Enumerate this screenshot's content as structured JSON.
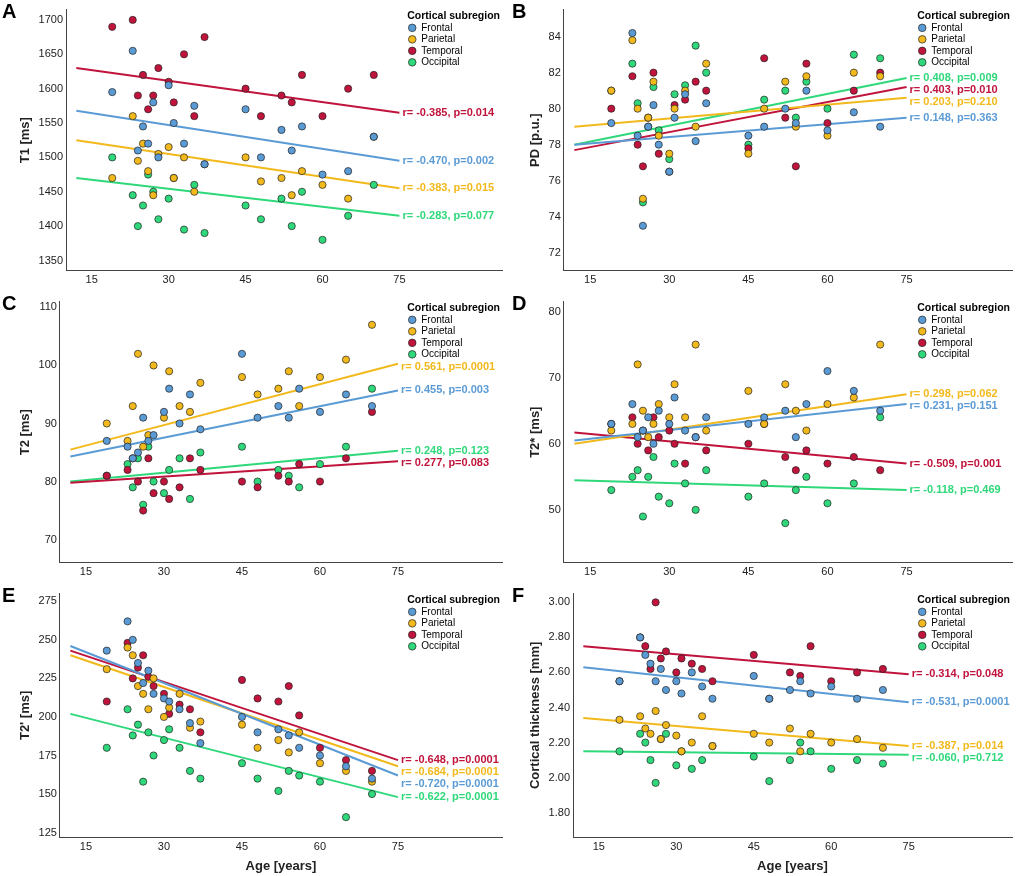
{
  "chart_data": [
    {
      "type": "scatter",
      "title": "A",
      "y_label": "T1 [ms]",
      "legend_title": "Cortical subregion",
      "legend": "upper right",
      "grid": false,
      "marker": "circle",
      "x": [
        19,
        23,
        24,
        25,
        26,
        27,
        28,
        30,
        31,
        33,
        35,
        37,
        45,
        48,
        52,
        54,
        56,
        60,
        65,
        70
      ],
      "xlim": [
        10,
        95
      ],
      "xticks": [
        15,
        30,
        45,
        60,
        75
      ],
      "ylim": [
        1335,
        1715
      ],
      "yticks": [
        1350,
        1400,
        1450,
        1500,
        1550,
        1600,
        1650,
        1700
      ],
      "trend_x": [
        12,
        75
      ],
      "series": [
        {
          "name": "Frontal",
          "color": "#5b9bd5",
          "values": [
            1595,
            1655,
            1510,
            1545,
            1520,
            1580,
            1500,
            1605,
            1550,
            1520,
            1575,
            1490,
            1570,
            1500,
            1540,
            1510,
            1545,
            1475,
            1480,
            1530
          ],
          "trend": [
            1568,
            1495
          ],
          "annotation": "r= -0.470, p=0.002"
        },
        {
          "name": "Parietal",
          "color": "#f2b91c",
          "values": [
            1470,
            1560,
            1495,
            1520,
            1480,
            1445,
            1505,
            1515,
            1470,
            1500,
            1450,
            1490,
            1500,
            1465,
            1470,
            1445,
            1480,
            1460,
            1440,
            1530
          ],
          "trend": [
            1525,
            1455
          ],
          "annotation": "r= -0.383, p=0.015"
        },
        {
          "name": "Temporal",
          "color": "#c0143c",
          "values": [
            1690,
            1700,
            1590,
            1620,
            1570,
            1590,
            1630,
            1610,
            1580,
            1650,
            1560,
            1675,
            1600,
            1560,
            1590,
            1580,
            1620,
            1560,
            1600,
            1620
          ],
          "trend": [
            1630,
            1565
          ],
          "annotation": "r= -0.385, p=0.014"
        },
        {
          "name": "Occipital",
          "color": "#2fd87a",
          "values": [
            1500,
            1445,
            1400,
            1430,
            1475,
            1450,
            1410,
            1440,
            1470,
            1395,
            1460,
            1390,
            1430,
            1410,
            1440,
            1400,
            1450,
            1380,
            1415,
            1460
          ],
          "trend": [
            1470,
            1415
          ],
          "annotation": "r= -0.283, p=0.077"
        }
      ]
    },
    {
      "type": "scatter",
      "title": "B",
      "y_label": "PD [p.u.]",
      "legend_title": "Cortical subregion",
      "legend": "upper right",
      "grid": false,
      "marker": "circle",
      "x": [
        19,
        23,
        24,
        25,
        26,
        27,
        28,
        30,
        31,
        33,
        35,
        37,
        45,
        48,
        52,
        54,
        56,
        60,
        65,
        70
      ],
      "xlim": [
        10,
        95
      ],
      "xticks": [
        15,
        30,
        45,
        60,
        75
      ],
      "ylim": [
        71,
        85.5
      ],
      "yticks": [
        72,
        74,
        76,
        78,
        80,
        82,
        84
      ],
      "trend_x": [
        12,
        75
      ],
      "series": [
        {
          "name": "Frontal",
          "color": "#5b9bd5",
          "values": [
            79.2,
            84.2,
            78.5,
            73.5,
            79.0,
            80.2,
            78.0,
            76.5,
            79.5,
            80.8,
            78.2,
            80.3,
            78.5,
            79.0,
            80.0,
            79.2,
            81.0,
            78.8,
            79.8,
            79.0
          ],
          "trend": [
            78.0,
            79.5
          ],
          "annotation": "r= 0.148, p=0.363"
        },
        {
          "name": "Parietal",
          "color": "#f2b91c",
          "values": [
            81.0,
            83.8,
            80.0,
            75.0,
            79.5,
            81.5,
            78.5,
            77.5,
            80.0,
            81.0,
            79.0,
            82.5,
            77.5,
            80.0,
            81.5,
            79.0,
            81.8,
            78.5,
            82.0,
            81.8
          ],
          "trend": [
            79.0,
            80.6
          ],
          "annotation": "r= 0.203, p=0.210"
        },
        {
          "name": "Temporal",
          "color": "#c0143c",
          "values": [
            80.0,
            81.8,
            78.0,
            76.8,
            79.5,
            82.0,
            77.5,
            76.5,
            80.2,
            80.5,
            81.5,
            81.0,
            77.8,
            82.8,
            79.5,
            76.8,
            82.5,
            79.2,
            81.0,
            82.0
          ],
          "trend": [
            77.7,
            81.2
          ],
          "annotation": "r= 0.403, p=0.010"
        },
        {
          "name": "Occipital",
          "color": "#2fd87a",
          "values": [
            81.0,
            82.5,
            80.3,
            74.8,
            79.0,
            81.2,
            78.8,
            77.2,
            80.8,
            81.3,
            83.5,
            82.0,
            78.0,
            80.5,
            81.0,
            79.5,
            81.5,
            80.0,
            83.0,
            82.8
          ],
          "trend": [
            78.0,
            81.7
          ],
          "annotation": "r= 0.408, p=0.009"
        }
      ]
    },
    {
      "type": "scatter",
      "title": "C",
      "y_label": "T2 [ms]",
      "legend_title": "Cortical subregion",
      "legend": "upper right",
      "grid": false,
      "marker": "circle",
      "x": [
        19,
        23,
        24,
        25,
        26,
        27,
        28,
        30,
        31,
        33,
        35,
        37,
        45,
        48,
        52,
        54,
        56,
        60,
        65,
        70
      ],
      "xlim": [
        10,
        95
      ],
      "xticks": [
        15,
        30,
        45,
        60,
        75
      ],
      "ylim": [
        66,
        111
      ],
      "yticks": [
        70,
        80,
        90,
        100,
        110
      ],
      "trend_x": [
        12,
        75
      ],
      "series": [
        {
          "name": "Frontal",
          "color": "#5b9bd5",
          "values": [
            87,
            86,
            84,
            85,
            91,
            87,
            88,
            92,
            96,
            90,
            95,
            89,
            102,
            91,
            93,
            91,
            96,
            92,
            95,
            93
          ],
          "trend": [
            84.3,
            95.7
          ],
          "annotation": "r= 0.455, p=0.003"
        },
        {
          "name": "Parietal",
          "color": "#f2b91c",
          "values": [
            90,
            87,
            93,
            102,
            86,
            88,
            100,
            91,
            99,
            93,
            92,
            97,
            98,
            95,
            96,
            99,
            93,
            98,
            101,
            107
          ],
          "trend": [
            85.5,
            100.3
          ],
          "annotation": "r= 0.561, p=0.0001"
        },
        {
          "name": "Temporal",
          "color": "#c0143c",
          "values": [
            81,
            82,
            84,
            80,
            75,
            84,
            78,
            80,
            77,
            79,
            84,
            82,
            80,
            79,
            81,
            80,
            83,
            80,
            84,
            92
          ],
          "trend": [
            79.8,
            83.5
          ],
          "annotation": "r= 0.277, p=0.083"
        },
        {
          "name": "Occipital",
          "color": "#2fd87a",
          "values": [
            81,
            83,
            79,
            84,
            76,
            86,
            80,
            78,
            82,
            84,
            77,
            85,
            86,
            80,
            82,
            81,
            79,
            83,
            86,
            96
          ],
          "trend": [
            80.0,
            85.3
          ],
          "annotation": "r= 0.248, p=0.123"
        }
      ]
    },
    {
      "type": "scatter",
      "title": "D",
      "y_label": "T2* [ms]",
      "legend_title": "Cortical subregion",
      "legend": "upper right",
      "grid": false,
      "marker": "circle",
      "x": [
        19,
        23,
        24,
        25,
        26,
        27,
        28,
        30,
        31,
        33,
        35,
        37,
        45,
        48,
        52,
        54,
        56,
        60,
        65,
        70
      ],
      "xlim": [
        10,
        95
      ],
      "xticks": [
        15,
        30,
        45,
        60,
        75
      ],
      "ylim": [
        42,
        81.5
      ],
      "yticks": [
        50,
        60,
        70,
        80
      ],
      "trend_x": [
        12,
        75
      ],
      "series": [
        {
          "name": "Frontal",
          "color": "#5b9bd5",
          "values": [
            63,
            66,
            61,
            62,
            64,
            60,
            65,
            63,
            67,
            62,
            61,
            64,
            63,
            64,
            65,
            61,
            66,
            71,
            68,
            65
          ],
          "trend": [
            60.5,
            66.0
          ],
          "annotation": "r= 0.231, p=0.151"
        },
        {
          "name": "Parietal",
          "color": "#f2b91c",
          "values": [
            62,
            63,
            72,
            65,
            61,
            63,
            66,
            64,
            69,
            64,
            75,
            62,
            68,
            63,
            69,
            65,
            62,
            66,
            67,
            75
          ],
          "trend": [
            60.0,
            67.5
          ],
          "annotation": "r= 0.298, p=0.062"
        },
        {
          "name": "Temporal",
          "color": "#c0143c",
          "values": [
            63,
            64,
            60,
            62,
            59,
            64,
            61,
            62,
            60,
            57,
            61,
            59,
            60,
            63,
            58,
            56,
            59,
            57,
            58,
            56
          ],
          "trend": [
            61.7,
            57.0
          ],
          "annotation": "r= -0.509, p=0.001"
        },
        {
          "name": "Occipital",
          "color": "#2fd87a",
          "values": [
            53,
            55,
            56,
            49,
            55,
            58,
            52,
            51,
            57,
            54,
            50,
            56,
            52,
            54,
            48,
            53,
            55,
            51,
            54,
            64
          ],
          "trend": [
            54.5,
            53.0
          ],
          "annotation": "r= -0.118, p=0.469"
        }
      ]
    },
    {
      "type": "scatter",
      "title": "E",
      "y_label": "T2' [ms]",
      "x_label": "Age [years]",
      "legend_title": "Cortical subregion",
      "legend": "upper right",
      "grid": false,
      "marker": "circle",
      "x": [
        19,
        23,
        24,
        25,
        26,
        27,
        28,
        30,
        31,
        33,
        35,
        37,
        45,
        48,
        52,
        54,
        56,
        60,
        65,
        70
      ],
      "xlim": [
        10,
        95
      ],
      "xticks": [
        15,
        30,
        45,
        60,
        75
      ],
      "ylim": [
        122,
        280
      ],
      "yticks": [
        125,
        150,
        175,
        200,
        225,
        250,
        275
      ],
      "trend_x": [
        12,
        75
      ],
      "series": [
        {
          "name": "Frontal",
          "color": "#5b9bd5",
          "values": [
            243,
            262,
            250,
            235,
            222,
            230,
            215,
            212,
            210,
            205,
            196,
            183,
            200,
            190,
            192,
            188,
            180,
            175,
            168,
            160
          ],
          "trend": [
            246,
            162
          ],
          "annotation": "r= -0.720, p=0.0001"
        },
        {
          "name": "Parietal",
          "color": "#f2b91c",
          "values": [
            231,
            245,
            240,
            220,
            215,
            205,
            225,
            200,
            206,
            215,
            193,
            197,
            195,
            180,
            185,
            177,
            190,
            170,
            165,
            158
          ],
          "trend": [
            240,
            168
          ],
          "annotation": "r= -0.684, p=0.0001"
        },
        {
          "name": "Temporal",
          "color": "#c0143c",
          "values": [
            210,
            248,
            225,
            232,
            240,
            226,
            220,
            215,
            202,
            208,
            205,
            190,
            224,
            212,
            210,
            220,
            201,
            180,
            172,
            165
          ],
          "trend": [
            243,
            172
          ],
          "annotation": "r= -0.648, p=0.0001"
        },
        {
          "name": "Occipital",
          "color": "#2fd87a",
          "values": [
            180,
            205,
            188,
            195,
            158,
            190,
            175,
            185,
            192,
            180,
            165,
            160,
            170,
            160,
            152,
            165,
            162,
            158,
            135,
            150
          ],
          "trend": [
            202,
            148
          ],
          "annotation": "r= -0.622, p=0.0001"
        }
      ]
    },
    {
      "type": "scatter",
      "title": "F",
      "y_label": "Cortical thickness [mm]",
      "x_label": "Age [years]",
      "legend_title": "Cortical subregion",
      "legend": "upper right",
      "grid": false,
      "marker": "circle",
      "x": [
        19,
        23,
        24,
        25,
        26,
        27,
        28,
        30,
        31,
        33,
        35,
        37,
        45,
        48,
        52,
        54,
        56,
        60,
        65,
        70
      ],
      "xlim": [
        10,
        95
      ],
      "xticks": [
        15,
        30,
        45,
        60,
        75
      ],
      "ylim": [
        1.66,
        3.05
      ],
      "yticks": [
        {
          "value": 1.8,
          "label": "1.80"
        },
        {
          "value": 2.0,
          "label": "2.00"
        },
        {
          "value": 2.2,
          "label": "2.20"
        },
        {
          "value": 2.4,
          "label": "2.40"
        },
        {
          "value": 2.6,
          "label": "2.60"
        },
        {
          "value": 2.8,
          "label": "2.80"
        },
        {
          "value": 3.0,
          "label": "3.00"
        }
      ],
      "trend_x": [
        12,
        75
      ],
      "series": [
        {
          "name": "Frontal",
          "color": "#5b9bd5",
          "values": [
            2.55,
            2.8,
            2.7,
            2.65,
            2.55,
            2.62,
            2.5,
            2.55,
            2.48,
            2.6,
            2.52,
            2.45,
            2.58,
            2.45,
            2.5,
            2.55,
            2.48,
            2.52,
            2.45,
            2.5
          ],
          "trend": [
            2.63,
            2.43
          ],
          "annotation": "r= -0.531, p=0.0001"
        },
        {
          "name": "Parietal",
          "color": "#f2b91c",
          "values": [
            2.33,
            2.35,
            2.28,
            2.25,
            2.38,
            2.22,
            2.3,
            2.24,
            2.15,
            2.2,
            2.35,
            2.18,
            2.25,
            2.2,
            2.28,
            2.15,
            2.25,
            2.2,
            2.22,
            2.17
          ],
          "trend": [
            2.34,
            2.18
          ],
          "annotation": "r= -0.387, p=0.014"
        },
        {
          "name": "Temporal",
          "color": "#c0143c",
          "values": [
            2.55,
            2.8,
            2.75,
            2.62,
            3.0,
            2.68,
            2.72,
            2.6,
            2.68,
            2.65,
            2.62,
            2.55,
            2.7,
            2.45,
            2.6,
            2.58,
            2.75,
            2.55,
            2.6,
            2.62
          ],
          "trend": [
            2.75,
            2.59
          ],
          "annotation": "r= -0.314, p=0.048"
        },
        {
          "name": "Occipital",
          "color": "#2fd87a",
          "values": [
            2.15,
            2.25,
            2.2,
            2.1,
            1.97,
            2.22,
            2.25,
            2.07,
            2.15,
            2.05,
            2.1,
            2.18,
            2.12,
            1.98,
            2.1,
            2.2,
            2.15,
            2.05,
            2.1,
            2.08
          ],
          "trend": [
            2.15,
            2.13
          ],
          "annotation": "r= -0.060, p=0.712"
        }
      ]
    }
  ]
}
